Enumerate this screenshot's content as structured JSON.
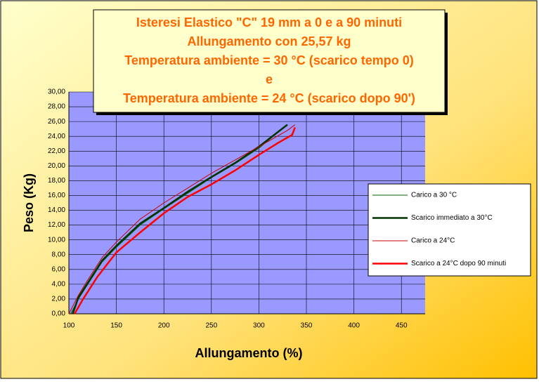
{
  "chart_data": {
    "type": "line",
    "title_lines": [
      "Isteresi Elastico \"C\"  19 mm  a 0 e a 90 minuti",
      "Allungamento con 25,57 kg",
      "Temperatura ambiente = 30 °C (scarico tempo 0)",
      "e",
      "Temperatura ambiente = 24 °C (scarico dopo 90')"
    ],
    "x_label": "Allungamento (%)",
    "y_label": "Peso (Kg)",
    "xlim": [
      100,
      475
    ],
    "xticks": [
      100,
      150,
      200,
      250,
      300,
      350,
      400,
      450
    ],
    "ylim": [
      0,
      30
    ],
    "yticks": [
      {
        "value": 0,
        "label": "0,00"
      },
      {
        "value": 2,
        "label": "2,00"
      },
      {
        "value": 4,
        "label": "4,00"
      },
      {
        "value": 6,
        "label": "6,00"
      },
      {
        "value": 8,
        "label": "8,00"
      },
      {
        "value": 10,
        "label": "10,00"
      },
      {
        "value": 12,
        "label": "12,00"
      },
      {
        "value": 14,
        "label": "14,00"
      },
      {
        "value": 16,
        "label": "16,00"
      },
      {
        "value": 18,
        "label": "18,00"
      },
      {
        "value": 20,
        "label": "20,00"
      },
      {
        "value": 22,
        "label": "22,00"
      },
      {
        "value": 24,
        "label": "24,00"
      },
      {
        "value": 26,
        "label": "26,00"
      },
      {
        "value": 28,
        "label": "28,00"
      },
      {
        "value": 30,
        "label": "30,00"
      }
    ],
    "grid": true,
    "series": [
      {
        "name": "Carico a 30 °C",
        "color": "#006600",
        "width": 1,
        "x": [
          102,
          110,
          120,
          135,
          150,
          175,
          200,
          225,
          250,
          275,
          300,
          330
        ],
        "values": [
          0,
          2,
          4,
          7,
          9,
          12,
          14.2,
          16.3,
          18.4,
          20.3,
          22.4,
          25.57
        ]
      },
      {
        "name": "Scarico immediato a 30°C",
        "color": "#003300",
        "width": 2.5,
        "x": [
          330,
          300,
          275,
          250,
          225,
          200,
          175,
          150,
          135,
          120,
          110,
          104
        ],
        "values": [
          25.57,
          22.6,
          20.4,
          18.5,
          16.5,
          14.3,
          12.2,
          9.2,
          7.2,
          4.2,
          2.2,
          0
        ]
      },
      {
        "name": "Carico a  24°C",
        "color": "#cc0000",
        "width": 1,
        "x": [
          100,
          110,
          120,
          135,
          150,
          175,
          200,
          225,
          250,
          275,
          300,
          330,
          338
        ],
        "values": [
          0,
          2.5,
          4.6,
          7.6,
          9.7,
          12.8,
          15,
          17,
          19,
          20.8,
          22.6,
          24.8,
          25.57
        ]
      },
      {
        "name": "Scarico a 24°C dopo 90 minuti",
        "color": "#ff0000",
        "width": 2.5,
        "x": [
          338,
          335,
          320,
          300,
          275,
          250,
          225,
          200,
          175,
          150,
          130,
          115,
          106
        ],
        "values": [
          25.2,
          24.2,
          23.1,
          21.5,
          19.4,
          17.5,
          15.8,
          13.6,
          11,
          8.3,
          5,
          2,
          0
        ]
      }
    ]
  }
}
